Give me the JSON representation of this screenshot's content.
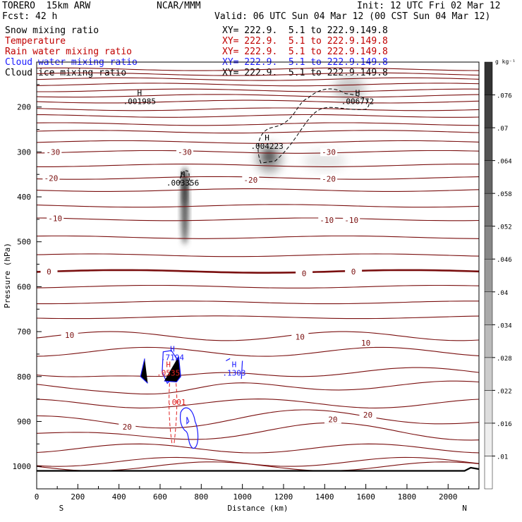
{
  "header": {
    "model": "TORERO  15km ARW",
    "center": "NCAR/MMM",
    "init": "Init: 12 UTC Fri 02 Mar 12",
    "fcst_label": "Fcst:",
    "fcst_value": "42 h",
    "valid": "Valid: 06 UTC Sun 04 Mar 12 (00 CST Sun 04 Mar 12)"
  },
  "fields": [
    {
      "name": "Snow mixing ratio",
      "color": "#000000",
      "xy": "XY= 222.9.  5.1 to 222.9.149.8"
    },
    {
      "name": "Temperature",
      "color": "#c00000",
      "xy": "XY= 222.9.  5.1 to 222.9.149.8"
    },
    {
      "name": "Rain water mixing ratio",
      "color": "#c00000",
      "xy": "XY= 222.9.  5.1 to 222.9.149.8"
    },
    {
      "name": "Cloud water mixing ratio",
      "color": "#1a1aff",
      "xy": "XY= 222.9.  5.1 to 222.9.149.8"
    },
    {
      "name": "Cloud ice mixing ratio",
      "color": "#000000",
      "xy": "XY= 222.9.  5.1 to 222.9.149.8"
    }
  ],
  "chart_data": {
    "type": "contour-cross-section",
    "xlabel": "Distance (km)",
    "ylabel": "Pressure (hPa)",
    "xlim": [
      0,
      2150
    ],
    "ylim": [
      1050,
      100
    ],
    "x_ticks": [
      0,
      200,
      400,
      600,
      800,
      1000,
      1200,
      1400,
      1600,
      1800,
      2000
    ],
    "y_ticks": [
      200,
      300,
      400,
      500,
      600,
      700,
      800,
      900,
      1000
    ],
    "left_end_label": "S",
    "right_end_label": "N",
    "colorbar": {
      "unit": "g kg⁻¹",
      "labels": [
        ".01",
        ".016",
        ".022",
        ".028",
        ".034",
        ".04",
        ".046",
        ".052",
        ".058",
        ".064",
        ".07",
        ".076"
      ],
      "range": [
        0.007,
        0.082
      ]
    },
    "temperature_levels_hPa": [
      1000,
      990,
      960,
      925,
      895,
      860,
      820,
      790,
      745,
      710,
      668,
      635,
      600,
      566,
      530,
      490,
      450,
      420,
      385,
      358,
      330,
      300,
      278,
      255,
      238,
      220,
      205,
      188,
      175,
      163,
      150,
      138,
      127,
      116
    ],
    "temperature_labels": [
      {
        "text": "-30",
        "x": 80,
        "p": 300
      },
      {
        "text": "-30",
        "x": 720,
        "p": 300
      },
      {
        "text": "-30",
        "x": 1420,
        "p": 300
      },
      {
        "text": "-20",
        "x": 70,
        "p": 358
      },
      {
        "text": "-20",
        "x": 1040,
        "p": 362
      },
      {
        "text": "-20",
        "x": 1420,
        "p": 360
      },
      {
        "text": "-10",
        "x": 90,
        "p": 448
      },
      {
        "text": "-10",
        "x": 1410,
        "p": 452
      },
      {
        "text": "-10",
        "x": 1530,
        "p": 452
      },
      {
        "text": "0",
        "x": 60,
        "p": 566
      },
      {
        "text": "0",
        "x": 1300,
        "p": 570
      },
      {
        "text": "0",
        "x": 1540,
        "p": 566
      },
      {
        "text": "10",
        "x": 160,
        "p": 708
      },
      {
        "text": "10",
        "x": 1280,
        "p": 712
      },
      {
        "text": "10",
        "x": 1600,
        "p": 725
      },
      {
        "text": "20",
        "x": 440,
        "p": 912
      },
      {
        "text": "20",
        "x": 1440,
        "p": 895
      },
      {
        "text": "20",
        "x": 1610,
        "p": 885
      }
    ],
    "maxima": [
      {
        "field": "Cloud ice mixing ratio",
        "value": ".001985",
        "x": 500,
        "p": 190
      },
      {
        "field": "Cloud ice mixing ratio",
        "value": ".006772",
        "x": 1560,
        "p": 190
      },
      {
        "field": "Cloud ice mixing ratio",
        "value": ".004223",
        "x": 1120,
        "p": 290
      },
      {
        "field": "Snow mixing ratio",
        "value": ".003356",
        "x": 710,
        "p": 372
      },
      {
        "field": "Cloud water mixing ratio",
        "value": ".7194",
        "x": 660,
        "p": 760
      },
      {
        "field": "Rain water mixing ratio",
        "value": ".0535",
        "x": 640,
        "p": 795
      },
      {
        "field": "Cloud water mixing ratio",
        "value": ".1303",
        "x": 960,
        "p": 795
      },
      {
        "field": "Rain water mixing ratio",
        "value": ".001",
        "x": 680,
        "p": 860
      }
    ]
  }
}
